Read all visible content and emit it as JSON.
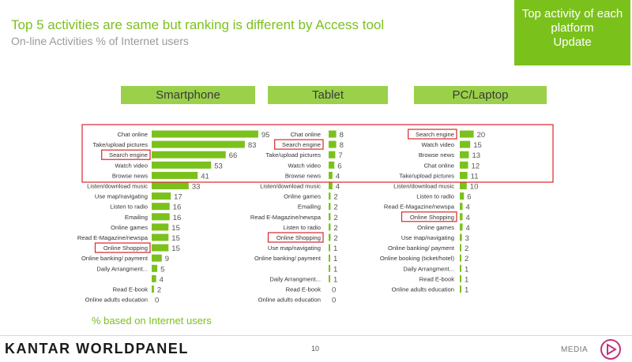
{
  "title": "Top 5 activities are same but ranking is different by Access tool",
  "subtitle": "On-line Activities % of Internet users",
  "callout": {
    "line1": "Top activity of each",
    "line2": "platform",
    "line3": "Update"
  },
  "note": "% based on Internet users",
  "footer": {
    "logo": "KANTAR WORLDPANEL",
    "page": "10",
    "section": "MEDIA"
  },
  "colors": {
    "accent": "#7bc11c",
    "header_bg": "#9bd14a",
    "bar": "#7bc11c",
    "highlight": "#d9262c"
  },
  "chart_data": [
    {
      "type": "bar",
      "orientation": "horizontal",
      "title": "Smartphone",
      "categories": [
        "Chat online",
        "Take/upload pictures",
        "Search engine",
        "Watch video",
        "Browse news",
        "Listen/download music",
        "Use map/navigating",
        "Listen to radio",
        "Emailing",
        "Online games",
        "Read E-Magazine/newspa",
        "Online Shopping",
        "Online banking/ payment",
        "Daily Arrangment...",
        "",
        "Read E-book",
        "Online adults education"
      ],
      "values": [
        95,
        83,
        66,
        53,
        41,
        33,
        17,
        16,
        16,
        15,
        15,
        15,
        9,
        5,
        4,
        2,
        0
      ],
      "highlighted": [
        "Search engine",
        "Online Shopping"
      ]
    },
    {
      "type": "bar",
      "orientation": "horizontal",
      "title": "Tablet",
      "categories": [
        "Chat online",
        "Search engine",
        "Take/upload pictures",
        "Watch video",
        "Browse news",
        "Listen/download music",
        "Online games",
        "Emailing",
        "Read E-Magazine/newspa",
        "Listen to radio",
        "Online Shopping",
        "Use map/navigating",
        "Online banking/ payment",
        "",
        "Daily Arrangment...",
        "Read E-book",
        "Online adults education"
      ],
      "values": [
        8,
        8,
        7,
        6,
        4,
        4,
        2,
        2,
        2,
        2,
        2,
        1,
        1,
        1,
        1,
        0,
        0
      ],
      "highlighted": [
        "Search engine",
        "Online Shopping"
      ]
    },
    {
      "type": "bar",
      "orientation": "horizontal",
      "title": "PC/Laptop",
      "categories": [
        "Search engine",
        "Watch video",
        "Browse news",
        "Chat online",
        "Take/upload pictures",
        "Listen/download music",
        "Listen to radio",
        "Read E-Magazine/newspa",
        "Online Shopping",
        "Online games",
        "Use map/navigating",
        "Online banking/ payment",
        "Online booking (ticket/hotel)",
        "Daily Arrangment...",
        "Read E-book",
        "Online adults education"
      ],
      "values": [
        20,
        15,
        13,
        12,
        11,
        10,
        6,
        4,
        4,
        4,
        3,
        2,
        2,
        1,
        1,
        1
      ],
      "highlighted": [
        "Search engine",
        "Online Shopping"
      ]
    }
  ]
}
